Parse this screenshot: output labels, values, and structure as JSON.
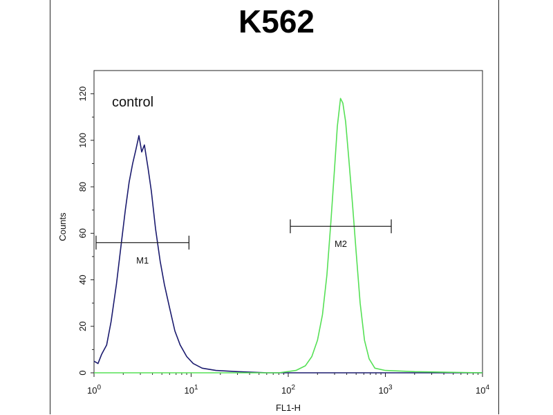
{
  "chart_data": {
    "type": "line",
    "title": "K562",
    "xlabel": "FL1-H",
    "ylabel": "Counts",
    "x_scale": "log",
    "xlim": [
      1,
      10000
    ],
    "ylim": [
      0,
      130
    ],
    "x_ticks": [
      {
        "base": "10",
        "exp": "0",
        "value": 1
      },
      {
        "base": "10",
        "exp": "1",
        "value": 10
      },
      {
        "base": "10",
        "exp": "2",
        "value": 100
      },
      {
        "base": "10",
        "exp": "3",
        "value": 1000
      },
      {
        "base": "10",
        "exp": "4",
        "value": 10000
      }
    ],
    "y_ticks": [
      0,
      20,
      40,
      60,
      80,
      100,
      120
    ],
    "annotation": "control",
    "grid": false,
    "series": [
      {
        "color": "#1a1a6e",
        "points": [
          [
            1.0,
            5
          ],
          [
            1.1,
            4
          ],
          [
            1.2,
            8
          ],
          [
            1.35,
            12
          ],
          [
            1.5,
            22
          ],
          [
            1.7,
            38
          ],
          [
            1.9,
            55
          ],
          [
            2.1,
            70
          ],
          [
            2.3,
            82
          ],
          [
            2.5,
            90
          ],
          [
            2.7,
            96
          ],
          [
            2.9,
            102
          ],
          [
            3.1,
            95
          ],
          [
            3.3,
            98
          ],
          [
            3.6,
            88
          ],
          [
            3.9,
            78
          ],
          [
            4.3,
            62
          ],
          [
            4.8,
            48
          ],
          [
            5.3,
            38
          ],
          [
            6.0,
            28
          ],
          [
            6.8,
            18
          ],
          [
            7.7,
            12
          ],
          [
            9.0,
            7
          ],
          [
            10.5,
            4
          ],
          [
            13,
            2
          ],
          [
            18,
            1
          ],
          [
            30,
            0.5
          ],
          [
            60,
            0
          ],
          [
            10000,
            0
          ]
        ]
      },
      {
        "color": "#55e055",
        "points": [
          [
            1.0,
            0
          ],
          [
            80,
            0
          ],
          [
            120,
            1
          ],
          [
            150,
            3
          ],
          [
            175,
            7
          ],
          [
            200,
            14
          ],
          [
            225,
            25
          ],
          [
            250,
            42
          ],
          [
            275,
            65
          ],
          [
            300,
            88
          ],
          [
            320,
            106
          ],
          [
            345,
            118
          ],
          [
            365,
            116
          ],
          [
            390,
            108
          ],
          [
            420,
            92
          ],
          [
            460,
            72
          ],
          [
            500,
            52
          ],
          [
            550,
            30
          ],
          [
            610,
            14
          ],
          [
            680,
            6
          ],
          [
            780,
            2
          ],
          [
            1000,
            1
          ],
          [
            2000,
            0.5
          ],
          [
            10000,
            0
          ]
        ]
      }
    ],
    "markers": [
      {
        "label": "M1",
        "x_start": 1.05,
        "x_end": 9.5,
        "y": 56
      },
      {
        "label": "M2",
        "x_start": 105,
        "x_end": 1150,
        "y": 63
      }
    ]
  }
}
